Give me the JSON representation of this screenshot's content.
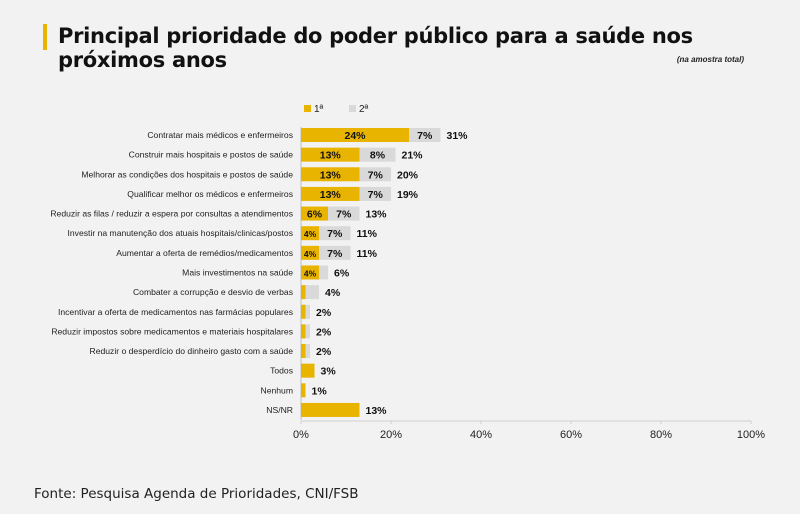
{
  "header": {
    "title": "Principal prioridade do poder público para a saúde nos próximos anos",
    "subtitle": "(na amostra total)"
  },
  "footer": {
    "source": "Fonte: Pesquisa Agenda de Prioridades, CNI/FSB"
  },
  "colors": {
    "first": "#e8b400",
    "second": "#d9d9d9",
    "background": "#f2f2f2",
    "accent": "#e8b400"
  },
  "chart_data": {
    "type": "bar",
    "orientation": "horizontal",
    "stacked": true,
    "title": "Principal prioridade do poder público para a saúde nos próximos anos",
    "subtitle": "(na amostra total)",
    "legend_placement": "top",
    "xlim": [
      0,
      100
    ],
    "xticks": [
      "0%",
      "20%",
      "40%",
      "60%",
      "80%",
      "100%"
    ],
    "xtick_values": [
      0,
      20,
      40,
      60,
      80,
      100
    ],
    "grid": false,
    "categories": [
      "Contratar mais médicos e enfermeiros",
      "Construir mais hospitais e postos de saúde",
      "Melhorar as condições dos hospitais e postos de saúde",
      "Qualificar melhor os médicos e enfermeiros",
      "Reduzir as filas / reduzir a espera por consultas a atendimentos",
      "Investir na manutenção dos atuais hospitais/clinicas/postos",
      "Aumentar a oferta de remédios/medicamentos",
      "Mais investimentos na saúde",
      "Combater a corrupção e desvio de verbas",
      "Incentivar a oferta  de medicamentos nas farmácias populares",
      "Reduzir impostos sobre medicamentos e materiais hospitalares",
      "Reduzir o desperdício do dinheiro gasto com a saúde",
      "Todos",
      "Nenhum",
      "NS/NR"
    ],
    "series": [
      {
        "name": "1ª",
        "values": [
          24,
          13,
          13,
          13,
          6,
          4,
          4,
          4,
          1,
          1,
          1,
          1,
          3,
          1,
          13
        ],
        "labels": [
          "24%",
          "13%",
          "13%",
          "13%",
          "6%",
          "4%",
          "4%",
          "4%",
          "",
          "",
          "",
          "",
          "",
          "",
          ""
        ]
      },
      {
        "name": "2ª",
        "values": [
          7,
          8,
          7,
          7,
          7,
          7,
          7,
          2,
          3,
          1,
          1,
          1,
          0,
          0,
          0
        ],
        "labels": [
          "7%",
          "8%",
          "7%",
          "7%",
          "7%",
          "7%",
          "7%",
          "",
          "",
          "",
          "",
          "",
          "",
          "",
          ""
        ]
      }
    ],
    "totals": [
      31,
      21,
      20,
      19,
      13,
      11,
      11,
      6,
      4,
      2,
      2,
      2,
      3,
      1,
      13
    ],
    "total_labels": [
      "31%",
      "21%",
      "20%",
      "19%",
      "13%",
      "11%",
      "11%",
      "6%",
      "4%",
      "2%",
      "2%",
      "2%",
      "3%",
      "1%",
      "13%"
    ]
  }
}
